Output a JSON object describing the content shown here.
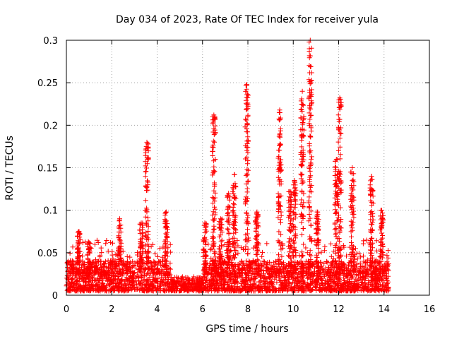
{
  "chart_data": {
    "type": "scatter",
    "title": "Day 034 of 2023, Rate Of TEC Index for receiver yula",
    "xlabel": "GPS time / hours",
    "ylabel": "ROTI / TECUs",
    "xlim": [
      0,
      16
    ],
    "ylim": [
      0,
      0.3
    ],
    "x_ticks": [
      "0",
      "2",
      "4",
      "6",
      "8",
      "10",
      "12",
      "14",
      "16"
    ],
    "y_ticks": [
      "0",
      "0.05",
      "0.1",
      "0.15",
      "0.2",
      "0.25",
      "0.3"
    ],
    "grid": true,
    "marker": "+",
    "color": "#ff0000",
    "data_range_hours": [
      0,
      14.2
    ],
    "baseline_roti": [
      0.005,
      0.04
    ],
    "bursts": [
      {
        "t": 0.55,
        "peak": 0.075
      },
      {
        "t": 1.0,
        "peak": 0.062
      },
      {
        "t": 2.35,
        "peak": 0.09
      },
      {
        "t": 3.3,
        "peak": 0.085
      },
      {
        "t": 3.55,
        "peak": 0.18
      },
      {
        "t": 4.4,
        "peak": 0.098
      },
      {
        "t": 6.1,
        "peak": 0.085
      },
      {
        "t": 6.5,
        "peak": 0.212
      },
      {
        "t": 6.8,
        "peak": 0.09
      },
      {
        "t": 7.15,
        "peak": 0.12
      },
      {
        "t": 7.4,
        "peak": 0.142
      },
      {
        "t": 7.95,
        "peak": 0.248
      },
      {
        "t": 8.4,
        "peak": 0.098
      },
      {
        "t": 9.4,
        "peak": 0.218
      },
      {
        "t": 9.85,
        "peak": 0.122
      },
      {
        "t": 10.05,
        "peak": 0.135
      },
      {
        "t": 10.4,
        "peak": 0.24
      },
      {
        "t": 10.75,
        "peak": 0.3
      },
      {
        "t": 11.05,
        "peak": 0.098
      },
      {
        "t": 11.9,
        "peak": 0.16
      },
      {
        "t": 12.05,
        "peak": 0.232
      },
      {
        "t": 12.6,
        "peak": 0.15
      },
      {
        "t": 13.45,
        "peak": 0.14
      },
      {
        "t": 13.9,
        "peak": 0.1
      }
    ]
  }
}
